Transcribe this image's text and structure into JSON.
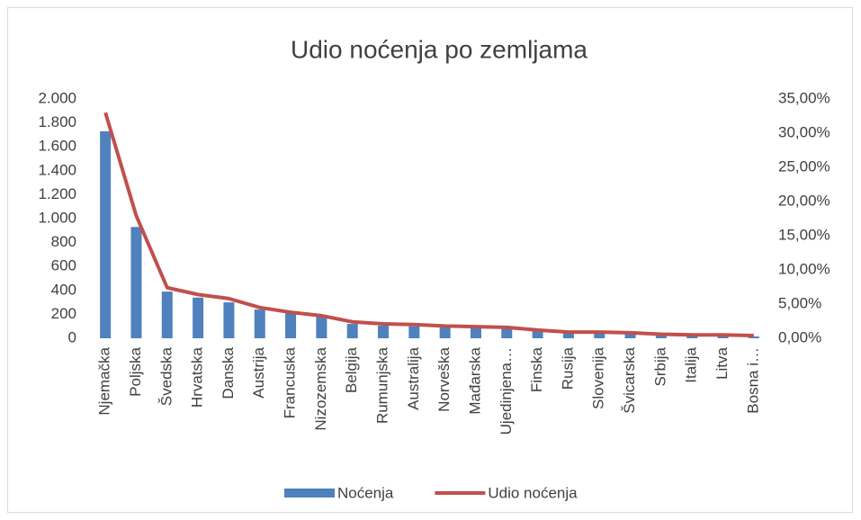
{
  "chart_data": {
    "type": "bar",
    "title": "Udio noćenja po zemljama",
    "categories": [
      "Njemačka",
      "Poljska",
      "Švedska",
      "Hrvatska",
      "Danska",
      "Austrija",
      "Francuska",
      "Nizozemska",
      "Belgija",
      "Rumunjska",
      "Australija",
      "Norveška",
      "Mađarska",
      "Ujedinjena…",
      "Finska",
      "Rusija",
      "Slovenija",
      "Švicarska",
      "Srbija",
      "Italija",
      "Litva",
      "Bosna i…"
    ],
    "series": [
      {
        "name": "Noćenja",
        "type": "bar",
        "color": "#4f81bd",
        "values": [
          1730,
          930,
          390,
          340,
          300,
          240,
          210,
          180,
          120,
          105,
          100,
          90,
          85,
          80,
          60,
          45,
          45,
          40,
          30,
          25,
          20,
          15
        ]
      },
      {
        "name": "Udio noćenja",
        "type": "line",
        "axis": "y2",
        "color": "#c0504d",
        "values": [
          33.0,
          17.9,
          7.4,
          6.4,
          5.8,
          4.5,
          3.8,
          3.3,
          2.4,
          2.1,
          2.0,
          1.8,
          1.7,
          1.6,
          1.2,
          0.9,
          0.9,
          0.8,
          0.6,
          0.5,
          0.5,
          0.4
        ]
      }
    ],
    "ylim": [
      0,
      2000
    ],
    "yticks": [
      0,
      200,
      400,
      600,
      800,
      {
        "value": 1000,
        "label": "1.000"
      },
      {
        "value": 1200,
        "label": "1.200"
      },
      {
        "value": 1400,
        "label": "1.400"
      },
      {
        "value": 1600,
        "label": "1.600"
      },
      {
        "value": 1800,
        "label": "1.800"
      },
      {
        "value": 2000,
        "label": "2.000"
      }
    ],
    "y2lim": [
      0,
      35
    ],
    "y2ticks": [
      {
        "value": 0,
        "label": "0,00%"
      },
      {
        "value": 5,
        "label": "5,00%"
      },
      {
        "value": 10,
        "label": "10,00%"
      },
      {
        "value": 15,
        "label": "15,00%"
      },
      {
        "value": 20,
        "label": "20,00%"
      },
      {
        "value": 25,
        "label": "25,00%"
      },
      {
        "value": 30,
        "label": "30,00%"
      },
      {
        "value": 35,
        "label": "35,00%"
      }
    ],
    "grid": false,
    "legend": "bottom"
  }
}
